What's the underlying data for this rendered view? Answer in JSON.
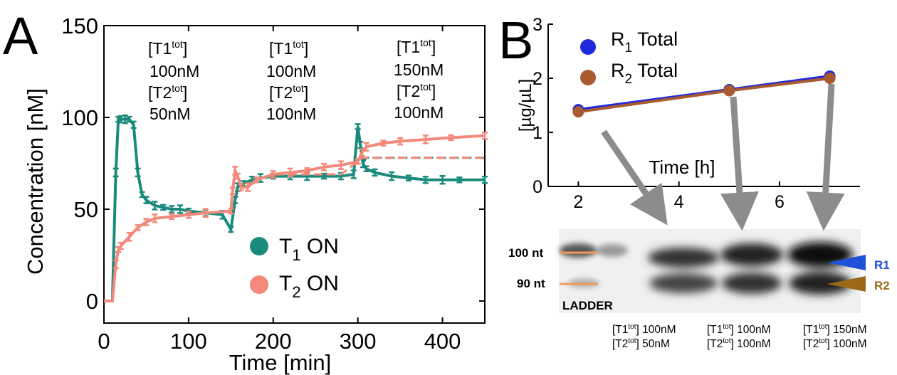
{
  "panels": {
    "a": {
      "letter": "A"
    },
    "b": {
      "letter": "B"
    }
  },
  "colors": {
    "teal": "#1a8a7c",
    "salmon": "#f2897a",
    "blue": "#1f2adb",
    "brown": "#a95a2e",
    "gray_arrow": "#8c8c8c",
    "gel_blue": "#1e50d8",
    "gel_brown": "#9a6a1a",
    "ladder_orange": "#f09a5a"
  },
  "chart_data": [
    {
      "type": "line",
      "panel": "A",
      "xlabel": "Time  [min]",
      "ylabel": "Concentration [nM]",
      "xlim": [
        0,
        450
      ],
      "ylim": [
        -12,
        150
      ],
      "xticks": [
        0,
        100,
        200,
        300,
        400
      ],
      "yticks": [
        0,
        50,
        100,
        150
      ],
      "grid": false,
      "legend_position": "lower-right",
      "annotations": [
        {
          "lines": [
            "[T1",
            "tot",
            "]",
            "100nM",
            "[T2",
            "tot",
            "]",
            "50nM"
          ]
        },
        {
          "lines": [
            "[T1",
            "tot",
            "]",
            "100nM",
            "[T2",
            "tot",
            "]",
            "100nM"
          ]
        },
        {
          "lines": [
            "[T1",
            "tot",
            "]",
            "150nM",
            "[T2",
            "tot",
            "]",
            "100nM"
          ]
        }
      ],
      "series": [
        {
          "name": "T1 ON",
          "legend_main": "T",
          "legend_sub": "1",
          "legend_rest": " ON",
          "color": "#1a8a7c",
          "x": [
            0,
            10,
            14,
            17,
            20,
            25,
            30,
            35,
            40,
            45,
            50,
            60,
            70,
            80,
            90,
            100,
            120,
            140,
            150,
            155,
            158,
            165,
            175,
            185,
            200,
            220,
            240,
            260,
            280,
            295,
            300,
            303,
            306,
            310,
            320,
            340,
            360,
            380,
            400,
            420,
            450
          ],
          "y": [
            0,
            0,
            70,
            99,
            99,
            99,
            99,
            96,
            70,
            58,
            55,
            52,
            51,
            50,
            50,
            49,
            48,
            47,
            39,
            55,
            62,
            64,
            66,
            67,
            68,
            68,
            68,
            68,
            68,
            69,
            95,
            85,
            75,
            72,
            70,
            68,
            67,
            66,
            66,
            66,
            66
          ]
        },
        {
          "name": "T2 ON",
          "legend_main": "T",
          "legend_sub": "2",
          "legend_rest": " ON",
          "color": "#f2897a",
          "x": [
            0,
            10,
            14,
            17,
            20,
            30,
            40,
            50,
            60,
            80,
            100,
            120,
            150,
            152,
            155,
            158,
            162,
            170,
            180,
            200,
            220,
            240,
            260,
            280,
            300,
            305,
            310,
            330,
            350,
            380,
            410,
            450
          ],
          "y": [
            0,
            0,
            20,
            28,
            30,
            35,
            40,
            43,
            45,
            46,
            47,
            48,
            49,
            60,
            71,
            68,
            62,
            62,
            66,
            69,
            70,
            71,
            73,
            74,
            76,
            81,
            84,
            86,
            87,
            88,
            89,
            90
          ]
        }
      ]
    },
    {
      "type": "line",
      "panel": "B",
      "xlabel": "Time [h]",
      "ylabel": "[µg/µL]",
      "xlim": [
        1.4,
        7.6
      ],
      "ylim": [
        0,
        3
      ],
      "xticks": [
        2,
        4,
        6
      ],
      "yticks": [
        0,
        1,
        2,
        3
      ],
      "grid": false,
      "legend_position": "top-left",
      "series": [
        {
          "name": "R1 Total",
          "legend_main": "R",
          "legend_sub": "1",
          "legend_rest": " Total",
          "color": "#1f2adb",
          "x": [
            2,
            5,
            7
          ],
          "y": [
            1.42,
            1.79,
            2.04
          ]
        },
        {
          "name": "R2 Total",
          "legend_main": "R",
          "legend_sub": "2",
          "legend_rest": " Total",
          "color": "#a95a2e",
          "x": [
            2,
            5,
            7
          ],
          "y": [
            1.38,
            1.77,
            2.0
          ]
        }
      ]
    }
  ],
  "gel": {
    "ladder_labels": [
      "100 nt",
      "90 nt"
    ],
    "ladder_caption": "LADDER",
    "band_labels": [
      "R1",
      "R2"
    ],
    "lanes": [
      {
        "t1": "[T1",
        "t1sup": "tot",
        "t1val": "] 100nM",
        "t2": "[T2",
        "t2sup": "tot",
        "t2val": "] 50nM"
      },
      {
        "t1": "[T1",
        "t1sup": "tot",
        "t1val": "] 100nM",
        "t2": "[T2",
        "t2sup": "tot",
        "t2val": "] 100nM"
      },
      {
        "t1": "[T1",
        "t1sup": "tot",
        "t1val": "] 150nM",
        "t2": "[T2",
        "t2sup": "tot",
        "t2val": "] 100nM"
      }
    ]
  }
}
